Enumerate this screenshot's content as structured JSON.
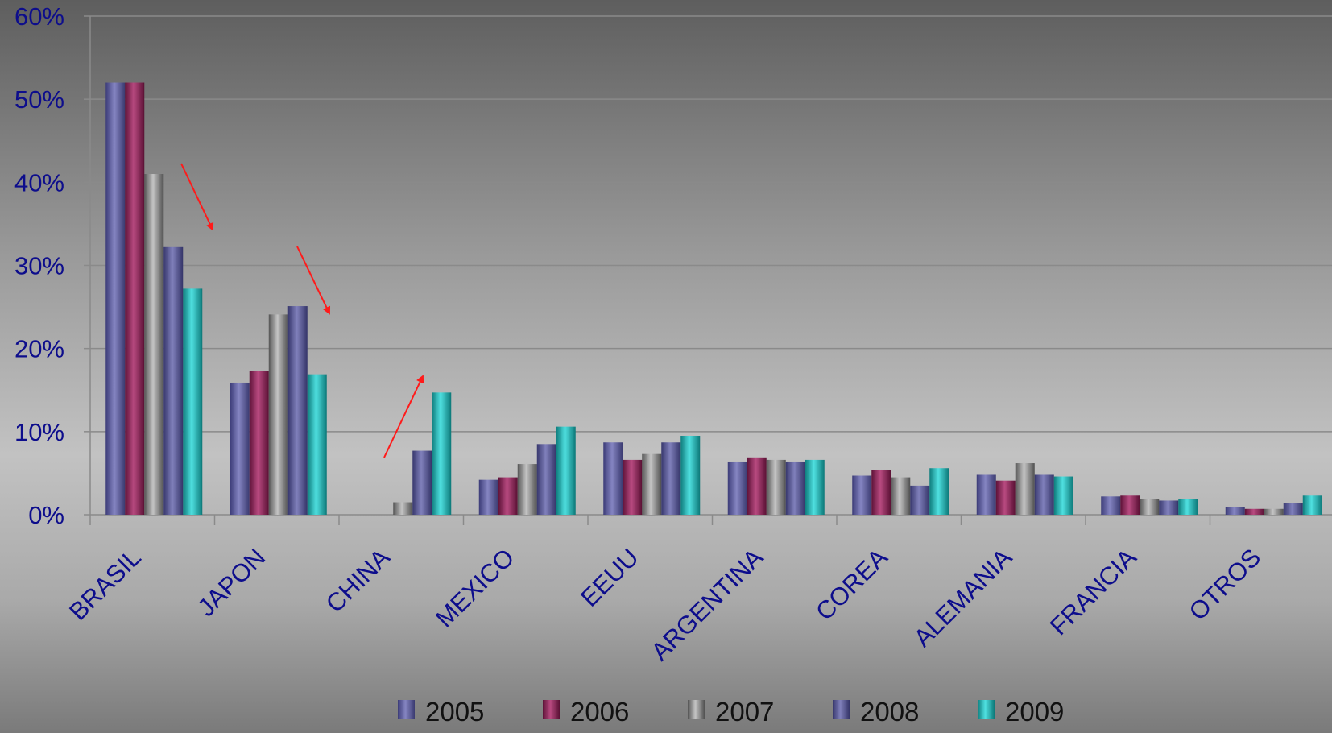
{
  "chart_data": {
    "type": "bar",
    "title": "",
    "xlabel": "",
    "ylabel": "",
    "ylim": [
      0,
      60
    ],
    "y_ticks": [
      "0%",
      "10%",
      "20%",
      "30%",
      "40%",
      "50%",
      "60%"
    ],
    "y_tick_values": [
      0,
      10,
      20,
      30,
      40,
      50,
      60
    ],
    "grid": true,
    "legend_position": "bottom",
    "categories": [
      "BRASIL",
      "JAPON",
      "CHINA",
      "MEXICO",
      "EEUU",
      "ARGENTINA",
      "COREA",
      "ALEMANIA",
      "FRANCIA",
      "OTROS"
    ],
    "series": [
      {
        "name": "2005",
        "color": "#5c5c9c",
        "values": [
          52,
          15.9,
          0,
          4.2,
          8.7,
          6.4,
          4.7,
          4.8,
          2.2,
          0.9
        ]
      },
      {
        "name": "2006",
        "color": "#8c2a5a",
        "values": [
          52,
          17.3,
          0,
          4.5,
          6.6,
          6.9,
          5.4,
          4.1,
          2.3,
          0.7
        ]
      },
      {
        "name": "2007",
        "color": "#8a8a8a",
        "values": [
          41,
          24.1,
          1.5,
          6.1,
          7.3,
          6.6,
          4.5,
          6.2,
          1.9,
          0.7
        ]
      },
      {
        "name": "2008",
        "color": "#55558f",
        "values": [
          32.2,
          25.1,
          7.7,
          8.5,
          8.7,
          6.4,
          3.5,
          4.8,
          1.7,
          1.4
        ]
      },
      {
        "name": "2009",
        "color": "#22b3b3",
        "values": [
          27.2,
          16.9,
          14.7,
          10.6,
          9.5,
          6.6,
          5.6,
          4.6,
          1.9,
          2.3
        ]
      }
    ],
    "annotations": [
      {
        "type": "arrow",
        "color": "#ff1a1a",
        "direction": "down",
        "category": "BRASIL"
      },
      {
        "type": "arrow",
        "color": "#ff1a1a",
        "direction": "down",
        "category": "JAPON"
      },
      {
        "type": "arrow",
        "color": "#ff1a1a",
        "direction": "up",
        "category": "CHINA"
      }
    ]
  }
}
